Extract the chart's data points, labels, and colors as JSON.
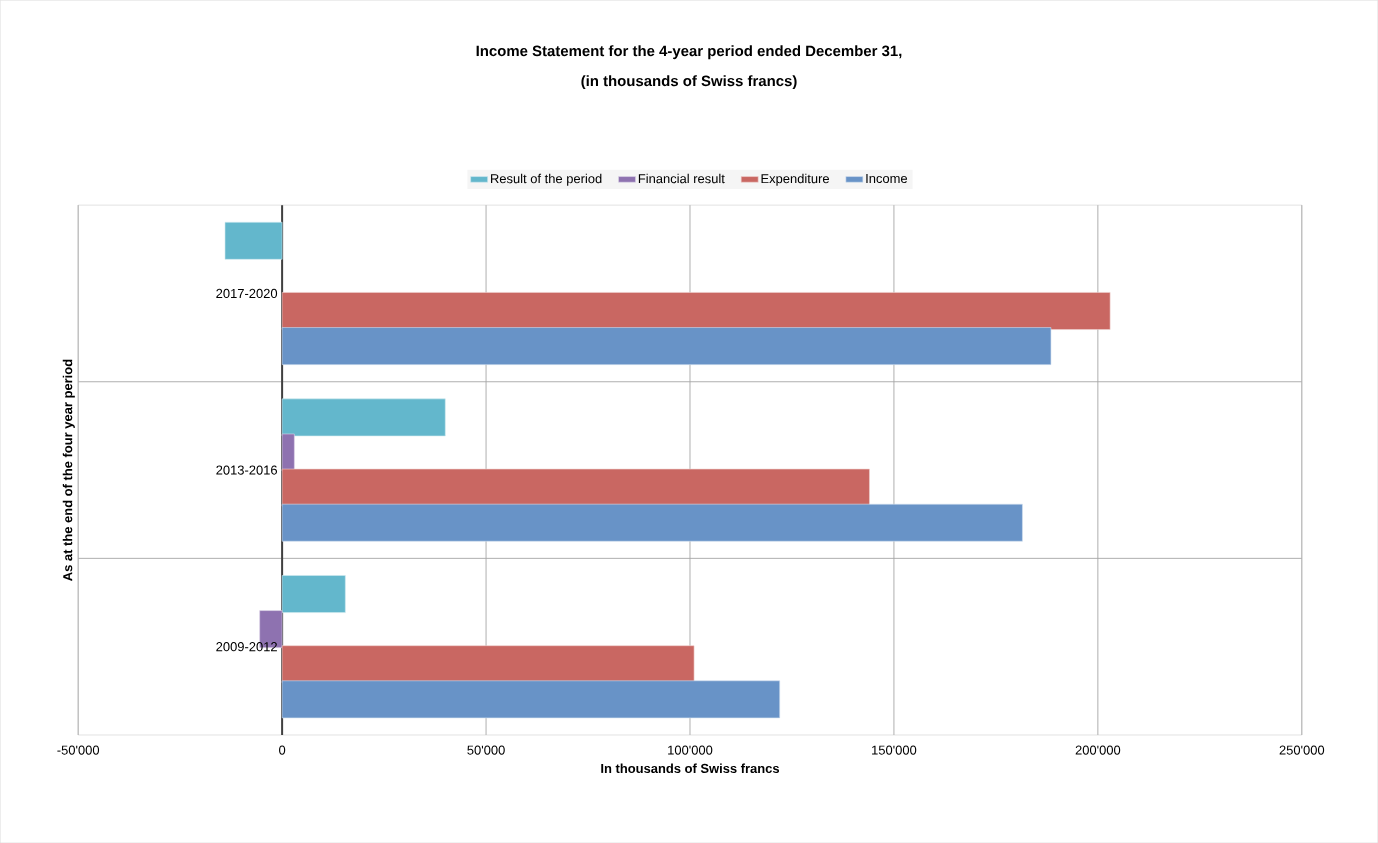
{
  "chart_data": {
    "type": "bar",
    "orientation": "horizontal",
    "title": "Income Statement for the 4-year period ended December 31,",
    "subtitle": "(in thousands of Swiss francs)",
    "xlabel": "In thousands of Swiss francs",
    "ylabel": "As at the end of the four year period",
    "categories": [
      "2017-2020",
      "2013-2016",
      "2009-2012"
    ],
    "series": [
      {
        "name": "Result of the period",
        "color": "#63b7cc",
        "values": [
          -14000,
          40000,
          15500
        ]
      },
      {
        "name": "Financial result",
        "color": "#8e72b0",
        "values": [
          null,
          3000,
          -5500
        ]
      },
      {
        "name": "Expenditure",
        "color": "#c96762",
        "values": [
          203000,
          144000,
          101000
        ]
      },
      {
        "name": "Income",
        "color": "#6893c7",
        "values": [
          188500,
          181500,
          122000
        ]
      }
    ],
    "xlim": [
      -50000,
      250000
    ],
    "xticks": [
      {
        "value": -50000,
        "label": "-50'000"
      },
      0,
      {
        "value": 50000,
        "label": "50'000"
      },
      {
        "value": 100000,
        "label": "100'000"
      },
      {
        "value": 150000,
        "label": "150'000"
      },
      {
        "value": 200000,
        "label": "200'000"
      },
      {
        "value": 250000,
        "label": "250'000"
      }
    ],
    "grid": true,
    "legend": "top"
  }
}
